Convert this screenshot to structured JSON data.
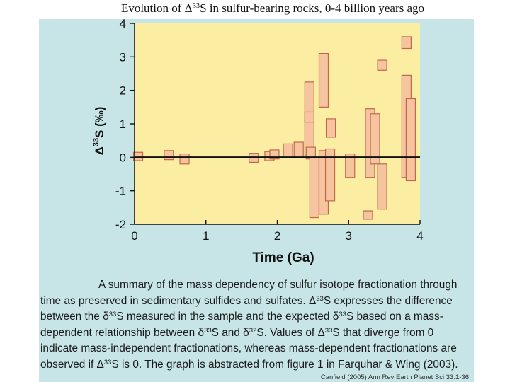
{
  "title": "Evolution of Δ33S in sulfur-bearing rocks, 0-4 billion years ago",
  "caption_lines": [
    "A summary of the mass dependency of sulfur isotope fractionation through",
    "time as preserved in sedimentary sulfides and sulfates. Δ33S expresses the difference",
    "between the δ33S measured in the sample and the expected δ33S based on a mass-",
    "dependent relationship between δ33S and δ32S. Values of Δ33S that diverge from 0",
    "indicate mass-independent fractionations, whereas mass-dependent fractionations are",
    "observed if Δ33S is 0. The graph is abstracted from figure 1 in Farquhar & Wing (2003)."
  ],
  "credit": "Canfield (2005) Ann Rev Earth Planet Sci 33:1-36",
  "colors": {
    "panel": "#c7e4e6",
    "plot_bg": "#fbeea3",
    "box_fill": "#f7c4a0",
    "box_stroke": "#c0694a",
    "axis": "#111111"
  },
  "chart_data": {
    "type": "range-bars",
    "title": "",
    "xlabel": "Time (Ga)",
    "ylabel": "Δ33S (‰)",
    "xlim": [
      0,
      4
    ],
    "ylim": [
      -2,
      4
    ],
    "xticks": [
      0,
      1,
      2,
      3,
      4
    ],
    "yticks": [
      -2,
      -1,
      0,
      1,
      2,
      3,
      4
    ],
    "reference_line": 0,
    "grid": false,
    "legend": "none",
    "ranges": [
      {
        "x": 0.05,
        "low": -0.1,
        "high": 0.15
      },
      {
        "x": 0.48,
        "low": -0.07,
        "high": 0.2
      },
      {
        "x": 0.7,
        "low": -0.2,
        "high": 0.1
      },
      {
        "x": 1.67,
        "low": -0.15,
        "high": 0.12
      },
      {
        "x": 1.89,
        "low": -0.1,
        "high": 0.17
      },
      {
        "x": 1.96,
        "low": -0.05,
        "high": 0.22
      },
      {
        "x": 2.15,
        "low": 0.0,
        "high": 0.4
      },
      {
        "x": 2.3,
        "low": 0.0,
        "high": 0.45
      },
      {
        "x": 2.45,
        "low": 0.05,
        "high": 2.25
      },
      {
        "x": 2.45,
        "low": 1.05,
        "high": 1.35
      },
      {
        "x": 2.47,
        "low": -0.05,
        "high": 0.3
      },
      {
        "x": 2.52,
        "low": -1.8,
        "high": 0.0
      },
      {
        "x": 2.65,
        "low": 1.5,
        "high": 3.1
      },
      {
        "x": 2.65,
        "low": -1.7,
        "high": 0.2
      },
      {
        "x": 2.75,
        "low": 0.6,
        "high": 1.15
      },
      {
        "x": 2.74,
        "low": -1.3,
        "high": 0.25
      },
      {
        "x": 3.02,
        "low": -0.6,
        "high": 0.1
      },
      {
        "x": 3.27,
        "low": -1.85,
        "high": -1.6
      },
      {
        "x": 3.3,
        "low": -0.6,
        "high": 1.45
      },
      {
        "x": 3.37,
        "low": -0.2,
        "high": 1.3
      },
      {
        "x": 3.47,
        "low": 2.6,
        "high": 2.9
      },
      {
        "x": 3.47,
        "low": -1.55,
        "high": -0.2
      },
      {
        "x": 3.81,
        "low": 3.25,
        "high": 3.6
      },
      {
        "x": 3.81,
        "low": -0.6,
        "high": 2.45
      },
      {
        "x": 3.87,
        "low": -0.7,
        "high": 1.75
      }
    ]
  }
}
